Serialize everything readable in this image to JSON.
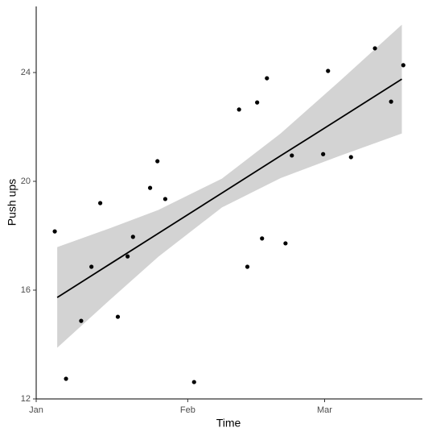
{
  "chart_data": {
    "type": "scatter",
    "x_label": "Time",
    "y_label": "Push ups",
    "x": [
      3.8,
      6.1,
      9.2,
      11.3,
      13.1,
      16.7,
      18.7,
      19.8,
      23.3,
      24.8,
      26.4,
      32.3,
      41.5,
      43.2,
      45.2,
      46.2,
      47.2,
      51,
      52.3,
      58.7,
      59.7,
      64.4,
      69.3,
      72.6,
      75.1
    ],
    "values": [
      18.16,
      12.74,
      14.87,
      16.86,
      19.2,
      15.02,
      17.24,
      17.96,
      19.76,
      20.74,
      19.35,
      12.62,
      22.64,
      16.86,
      22.9,
      17.9,
      23.79,
      17.72,
      20.95,
      21.0,
      24.06,
      20.89,
      24.89,
      22.93,
      24.27
    ],
    "color": "#000000",
    "fit": {
      "x": [
        4.3,
        15,
        25,
        38,
        50,
        62,
        74.8
      ],
      "values": [
        15.73,
        16.95,
        18.09,
        19.57,
        20.94,
        22.3,
        23.76
      ],
      "lower": [
        13.88,
        15.63,
        17.23,
        19.04,
        20.12,
        20.93,
        21.76
      ],
      "upper": [
        17.58,
        18.27,
        18.95,
        20.1,
        21.76,
        23.67,
        25.76
      ],
      "color": "#000000",
      "band_color": "#d3d3d3"
    },
    "xlim": [
      0,
      79
    ],
    "ylim": [
      12,
      26.43
    ],
    "xticks": [
      {
        "value": 0,
        "label": "Jan"
      },
      {
        "value": 31,
        "label": "Feb"
      },
      {
        "value": 59,
        "label": "Mar"
      }
    ],
    "yticks": [
      12,
      16,
      20,
      24
    ],
    "grid": false
  }
}
